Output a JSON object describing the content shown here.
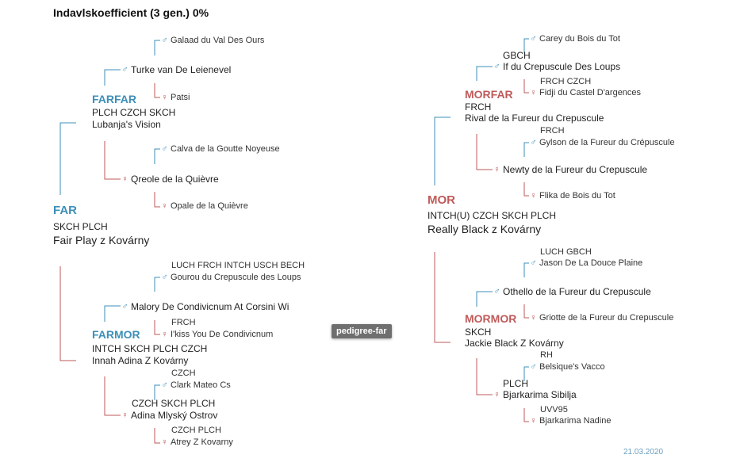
{
  "title": "Indavlskoefficient (3 gen.) 0%",
  "badge": "pedigree-far",
  "date": "21.03.2020",
  "icons": {
    "male": "male-symbol-icon",
    "female": "female-symbol-icon"
  },
  "colors": {
    "male": "#3d8fb8",
    "female": "#bf5a5a"
  },
  "far": {
    "role": "FAR",
    "titles": "SKCH PLCH",
    "name": "Fair Play z Kovárny",
    "farfar": {
      "role": "FARFAR",
      "titles": "PLCH CZCH SKCH",
      "name": "Lubanja's Vision",
      "father": {
        "name": "Turke van De Leienevel",
        "father": {
          "name": "Galaad du Val Des Ours"
        },
        "mother": {
          "name": "Patsi"
        }
      },
      "mother": {
        "name": "Qreole de la Quièvre",
        "father": {
          "name": "Calva de la Goutte Noyeuse"
        },
        "mother": {
          "name": "Opale de la Quièvre"
        }
      }
    },
    "farmor": {
      "role": "FARMOR",
      "titles": "INTCH SKCH PLCH CZCH",
      "name": "Innah Adina Z Kovárny",
      "father": {
        "name": "Malory De Condivicnum At Corsini Wi",
        "father": {
          "titles": "LUCH FRCH INTCH USCH BECH",
          "name": "Gourou du Crepuscule des Loups"
        },
        "mother": {
          "titles": "FRCH",
          "name": "I'kiss You De Condivicnum"
        }
      },
      "mother": {
        "titles": "CZCH SKCH PLCH",
        "name": "Adina Mlyský Ostrov",
        "father": {
          "titles": "CZCH",
          "name": "Clark Mateo Cs"
        },
        "mother": {
          "titles": "CZCH PLCH",
          "name": "Atrey Z Kovarny"
        }
      }
    }
  },
  "mor": {
    "role": "MOR",
    "titles": "INTCH(U) CZCH SKCH PLCH",
    "name": "Really Black z Kovárny",
    "morfar": {
      "role": "MORFAR",
      "titles": "FRCH",
      "name": "Rival de la Fureur du Crepuscule",
      "father": {
        "titles": "GBCH",
        "name": "If du Crepuscule Des Loups",
        "father": {
          "name": "Carey du Bois du Tot"
        },
        "mother": {
          "titles": "FRCH CZCH",
          "name": "Fidji du Castel D'argences"
        }
      },
      "mother": {
        "name": "Newty de la Fureur du Crepuscule",
        "father": {
          "titles": "FRCH",
          "name": "Gylson de la Fureur du Crépuscule"
        },
        "mother": {
          "name": "Flika de Bois du Tot"
        }
      }
    },
    "mormor": {
      "role": "MORMOR",
      "titles": "SKCH",
      "name": "Jackie Black Z Kovárny",
      "father": {
        "name": "Othello de la Fureur du Crepuscule",
        "father": {
          "titles": "LUCH GBCH",
          "name": "Jason De La Douce Plaine"
        },
        "mother": {
          "name": "Griotte de la Fureur du Crepuscule"
        }
      },
      "mother": {
        "titles": "PLCH",
        "name": "Bjarkarima Sibilja",
        "father": {
          "titles": "RH",
          "name": "Belsique's Vacco"
        },
        "mother": {
          "titles": "UVV95",
          "name": "Bjarkarima Nadine"
        }
      }
    }
  }
}
